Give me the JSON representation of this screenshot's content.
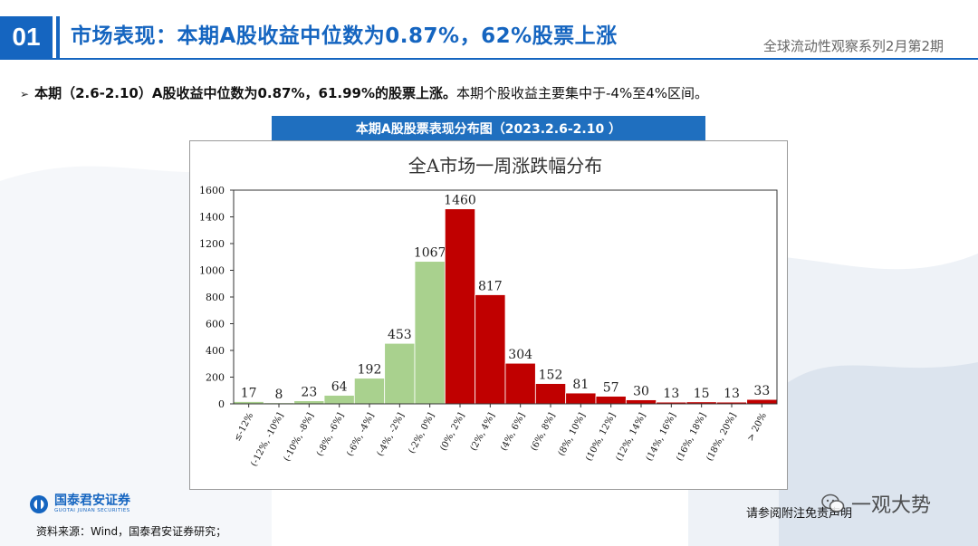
{
  "header": {
    "slide_number": "01",
    "title": "市场表现：本期A股收益中位数为0.87%，62%股票上涨",
    "series_label": "全球流动性观察系列2月第2期"
  },
  "bullet": {
    "bold_text": "本期（2.6-2.10）A股收益中位数为0.87%，61.99%的股票上涨。",
    "plain_text": "本期个股收益主要集中于-4%至4%区间。"
  },
  "chart_header": "本期A股股票表现分布图（2023.2.6-2.10 ）",
  "chart_data": {
    "type": "bar",
    "title": "全A市场一周涨跌幅分布",
    "categories": [
      "≤-12%",
      "(-12%, -10%]",
      "(-10%, -8%]",
      "(-8%, -6%]",
      "(-6%, -4%]",
      "(-4%, -2%]",
      "(-2%, 0%]",
      "(0%, 2%]",
      "(2%, 4%]",
      "(4%, 6%]",
      "(6%, 8%]",
      "(8%, 10%]",
      "(10%, 12%]",
      "(12%, 14%]",
      "(14%, 16%]",
      "(16%, 18%]",
      "(18%, 20%]",
      "> 20%"
    ],
    "values": [
      17,
      8,
      23,
      64,
      192,
      453,
      1067,
      1460,
      817,
      304,
      152,
      81,
      57,
      30,
      13,
      15,
      13,
      33
    ],
    "ylim": [
      0,
      1600
    ],
    "yticks": [
      0,
      200,
      400,
      600,
      800,
      1000,
      1200,
      1400,
      1600
    ],
    "colors": {
      "decline": "#a9d18e",
      "rise": "#c00000"
    },
    "rise_start_index": 7
  },
  "footer": {
    "logo_cn": "国泰君安证券",
    "logo_en": "GUOTAI JUNAN SECURITIES",
    "source": "资料来源：Wind，国泰君安证券研究；",
    "disclaimer": "请参阅附注免责声明",
    "watermark": "一观大势"
  }
}
